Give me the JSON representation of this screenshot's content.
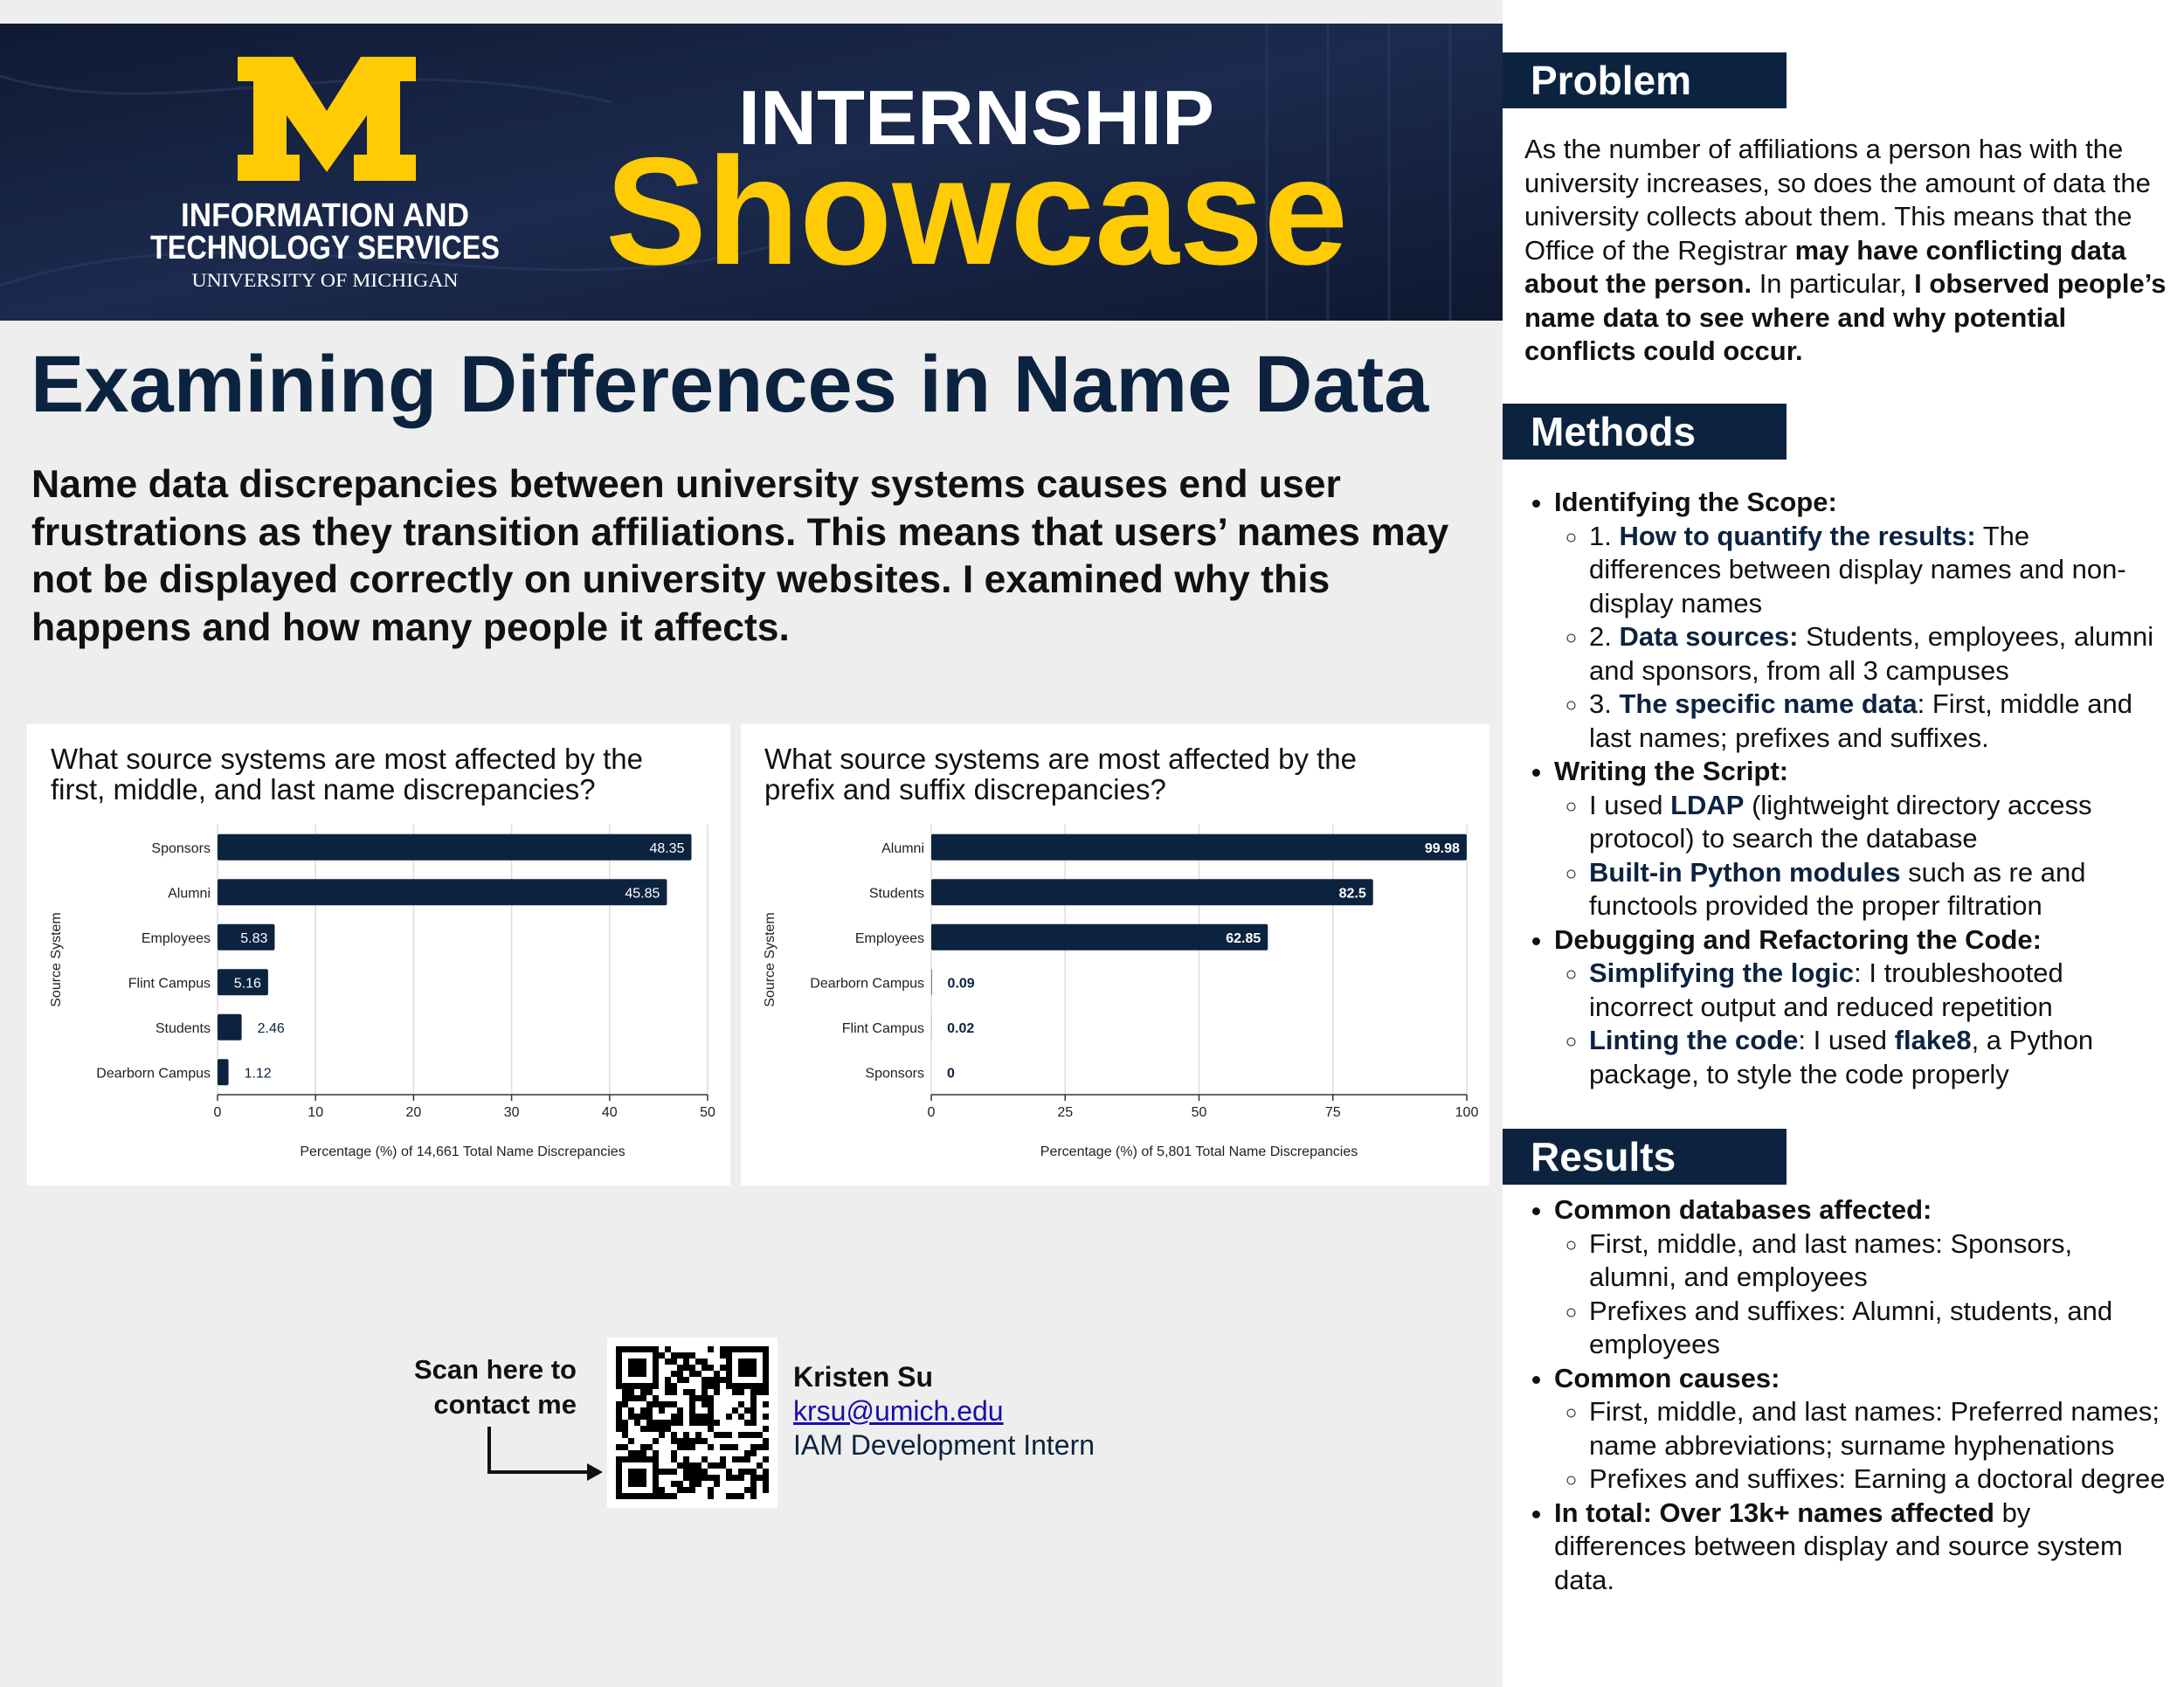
{
  "banner": {
    "org_lines": [
      "INFORMATION AND",
      "TECHNOLOGY SERVICES"
    ],
    "university": "UNIVERSITY OF MICHIGAN",
    "event_line1": "INTERNSHIP",
    "event_line2": "Showcase"
  },
  "title": "Examining Differences in Name Data",
  "intro": "Name data discrepancies between university systems causes end user frustrations as they transition affiliations. This means that users’ names may not be displayed correctly on university websites. I examined why this happens and how many people it affects.",
  "chart_data": [
    {
      "type": "bar",
      "orientation": "horizontal",
      "title": "What source systems are most affected by the first, middle, and last name discrepancies?",
      "categories": [
        "Sponsors",
        "Alumni",
        "Employees",
        "Flint Campus",
        "Students",
        "Dearborn Campus"
      ],
      "values": [
        48.35,
        45.85,
        5.83,
        5.16,
        2.46,
        1.12
      ],
      "color": "#0c2340",
      "xlim": [
        0,
        50
      ],
      "xticks": [
        0,
        10,
        20,
        30,
        40,
        50
      ],
      "grid": true,
      "x_label": "Percentage (%) of 14,661 Total Name Discrepancies",
      "y_label": "Source System"
    },
    {
      "type": "bar",
      "orientation": "horizontal",
      "title": "What source systems are most affected by the prefix and suffix discrepancies?",
      "categories": [
        "Alumni",
        "Students",
        "Employees",
        "Dearborn Campus",
        "Flint Campus",
        "Sponsors"
      ],
      "values": [
        99.98,
        82.5,
        62.85,
        0.09,
        0.02,
        0
      ],
      "color": "#0c2340",
      "xlim": [
        0,
        100
      ],
      "xticks": [
        0,
        25,
        50,
        75,
        100
      ],
      "grid": true,
      "x_label": "Percentage (%) of 5,801 Total Name Discrepancies",
      "y_label": "Source System"
    }
  ],
  "contact": {
    "prompt": "Scan here to contact me",
    "name": "Kristen Su",
    "email": "krsu@umich.edu",
    "role": "IAM Development Intern"
  },
  "sections": [
    {
      "heading": "Problem",
      "paragraph": [
        {
          "text": "As the number of affiliations a person has with the university increases, so does the amount of data the university collects about them. This means that the Office of the Registrar ",
          "style": "plain"
        },
        {
          "text": "may have conflicting data about the person.",
          "style": "bold"
        },
        {
          "text": " In particular, ",
          "style": "plain"
        },
        {
          "text": "I observed people’s name data to see where and why potential conflicts could occur.",
          "style": "bold"
        }
      ]
    },
    {
      "heading": "Methods",
      "items": [
        {
          "runs": [
            {
              "text": "Identifying the Scope:",
              "style": "bold"
            }
          ],
          "subitems": [
            {
              "runs": [
                {
                  "text": "1. ",
                  "style": "plain"
                },
                {
                  "text": "How to quantify the results:",
                  "style": "accent"
                },
                {
                  "text": " The differences between display names and non-display names",
                  "style": "plain"
                }
              ]
            },
            {
              "runs": [
                {
                  "text": "2. ",
                  "style": "plain"
                },
                {
                  "text": "Data sources:",
                  "style": "accent"
                },
                {
                  "text": " Students, employees, alumni and sponsors, from all 3 campuses",
                  "style": "plain"
                }
              ]
            },
            {
              "runs": [
                {
                  "text": "3. ",
                  "style": "plain"
                },
                {
                  "text": "The specific name data",
                  "style": "accent"
                },
                {
                  "text": ": First, middle and last names; prefixes and suffixes.",
                  "style": "plain"
                }
              ]
            }
          ]
        },
        {
          "runs": [
            {
              "text": "Writing the Script:",
              "style": "bold"
            }
          ],
          "subitems": [
            {
              "runs": [
                {
                  "text": "I used ",
                  "style": "plain"
                },
                {
                  "text": "LDAP",
                  "style": "accent"
                },
                {
                  "text": " (lightweight directory access protocol) to search the database",
                  "style": "plain"
                }
              ]
            },
            {
              "runs": [
                {
                  "text": "Built-in Python modules",
                  "style": "accent"
                },
                {
                  "text": " such as re and functools provided the proper filtration",
                  "style": "plain"
                }
              ]
            }
          ]
        },
        {
          "runs": [
            {
              "text": "Debugging and Refactoring the Code:",
              "style": "bold"
            }
          ],
          "subitems": [
            {
              "runs": [
                {
                  "text": "Simplifying the logic",
                  "style": "accent"
                },
                {
                  "text": ": I troubleshooted incorrect output and reduced repetition",
                  "style": "plain"
                }
              ]
            },
            {
              "runs": [
                {
                  "text": "Linting the code",
                  "style": "accent"
                },
                {
                  "text": ": I used ",
                  "style": "plain"
                },
                {
                  "text": "flake8",
                  "style": "accent"
                },
                {
                  "text": ", a Python package, to style the code properly",
                  "style": "plain"
                }
              ]
            }
          ]
        }
      ]
    },
    {
      "heading": "Results",
      "items": [
        {
          "runs": [
            {
              "text": "Common databases affected:",
              "style": "bold"
            }
          ],
          "subitems": [
            {
              "runs": [
                {
                  "text": "First, middle, and last names: Sponsors, alumni, and employees",
                  "style": "plain"
                }
              ]
            },
            {
              "runs": [
                {
                  "text": "Prefixes and suffixes: Alumni, students, and employees",
                  "style": "plain"
                }
              ]
            }
          ]
        },
        {
          "runs": [
            {
              "text": "Common causes:",
              "style": "bold"
            }
          ],
          "subitems": [
            {
              "runs": [
                {
                  "text": "First, middle, and last names: Preferred names; name abbreviations; surname hyphenations",
                  "style": "plain"
                }
              ]
            },
            {
              "runs": [
                {
                  "text": "Prefixes and suffixes: Earning a doctoral degree",
                  "style": "plain"
                }
              ]
            }
          ]
        },
        {
          "runs": [
            {
              "text": "In total: Over 13k+ names affected",
              "style": "bold"
            },
            {
              "text": " by differences between display and source system data.",
              "style": "plain"
            }
          ],
          "subitems": []
        }
      ]
    }
  ]
}
